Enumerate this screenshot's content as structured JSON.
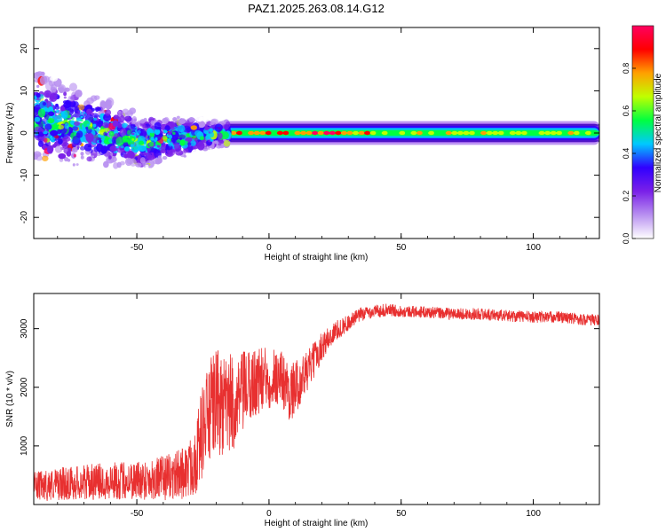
{
  "title": "PAZ1.2025.263.08.14.G12",
  "chart_data": [
    {
      "type": "heatmap",
      "xlabel": "Height of straight line (km)",
      "ylabel": "Frequency (Hz)",
      "xlim": [
        -89,
        125
      ],
      "ylim": [
        -25,
        25
      ],
      "x_ticks": [
        -50,
        0,
        50,
        100
      ],
      "y_ticks": [
        -20,
        -10,
        0,
        10,
        20
      ],
      "colorbar": {
        "label": "Normalized spectral amplitude",
        "range": [
          0.0,
          1.0
        ],
        "ticks": [
          0.0,
          0.2,
          0.4,
          0.6,
          0.8
        ],
        "tick_labels": [
          "0.0",
          "0.2",
          "0.4",
          "0.6",
          "0.8"
        ],
        "colors": [
          "#ffffff",
          "#b890f0",
          "#7a20e8",
          "#3000ff",
          "#00c8ff",
          "#00ff40",
          "#c0ff00",
          "#ffa000",
          "#ff0000",
          "#ff0060"
        ]
      },
      "description_values": {
        "carrier_frequency_hz": 0,
        "scatter_region_x": [
          -89,
          -15
        ],
        "scatter_spread_hz_at_-80km": 10,
        "scatter_center_hz_at_-80km": 4,
        "scatter_center_hz_at_-40km": -2,
        "stable_band_halfwidth_hz": 2
      }
    },
    {
      "type": "line",
      "xlabel": "Height of straight line (km)",
      "ylabel": "SNR (10 * v/v)",
      "xlim": [
        -89,
        125
      ],
      "ylim": [
        0,
        3600
      ],
      "x_ticks": [
        -50,
        0,
        50,
        100
      ],
      "y_ticks": [
        1000,
        2000,
        3000
      ],
      "series": [
        {
          "color": "#e83030",
          "x": [
            -89,
            -80,
            -70,
            -60,
            -50,
            -40,
            -35,
            -30,
            -27,
            -25,
            -22,
            -20,
            -17,
            -15,
            -12,
            -10,
            -5,
            0,
            2,
            5,
            8,
            10,
            15,
            20,
            25,
            30,
            35,
            40,
            45,
            50,
            60,
            70,
            80,
            90,
            100,
            110,
            120,
            125
          ],
          "y": [
            300,
            350,
            380,
            400,
            420,
            450,
            500,
            600,
            900,
            1300,
            1600,
            1800,
            1600,
            1700,
            1700,
            1900,
            2100,
            2150,
            2200,
            2150,
            1900,
            2000,
            2300,
            2700,
            2950,
            3100,
            3250,
            3300,
            3320,
            3300,
            3280,
            3250,
            3250,
            3220,
            3200,
            3200,
            3150,
            3150
          ],
          "noise": [
            250,
            280,
            300,
            320,
            340,
            380,
            420,
            500,
            700,
            800,
            900,
            900,
            900,
            900,
            700,
            700,
            600,
            550,
            500,
            500,
            500,
            450,
            350,
            250,
            180,
            140,
            120,
            110,
            110,
            100,
            100,
            100,
            100,
            100,
            100,
            100,
            100,
            100
          ]
        }
      ]
    }
  ]
}
